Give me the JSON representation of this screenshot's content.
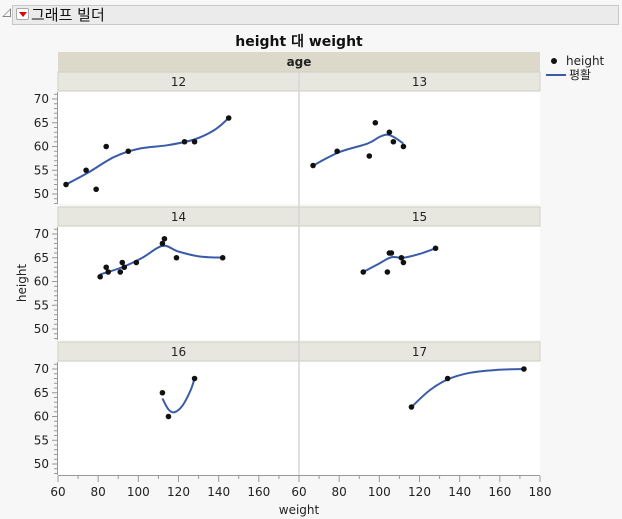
{
  "outline": {
    "title": "그래프 빌더",
    "disclosure_icon": "triangle-collapse-icon",
    "menu_icon": "red-triangle-menu-icon"
  },
  "legend": {
    "items": [
      {
        "label": "height",
        "type": "marker"
      },
      {
        "label": "평활",
        "type": "line"
      }
    ]
  },
  "colors": {
    "smoother": "#3a5ba8",
    "points": "#111111",
    "group_header": "#dcd9cb",
    "facet_header": "#e8e7df",
    "plot_bg": "#ffffff"
  },
  "chart_data": {
    "type": "scatter",
    "title": "height 대 weight",
    "xlabel": "weight",
    "ylabel": "height",
    "group_by_label": "age",
    "xlim": [
      60,
      180
    ],
    "ylim": [
      47,
      71
    ],
    "x_ticks_left": [
      60,
      80,
      100,
      120,
      140,
      160
    ],
    "x_ticks_right": [
      60,
      80,
      100,
      120,
      140,
      160,
      180
    ],
    "y_ticks": [
      50,
      55,
      60,
      65,
      70
    ],
    "grid": false,
    "legend_position": "right",
    "smoother": "spline",
    "panels": [
      {
        "age": "12",
        "points": [
          [
            64,
            52
          ],
          [
            74,
            55
          ],
          [
            79,
            51
          ],
          [
            84,
            60
          ],
          [
            95,
            59
          ],
          [
            123,
            61
          ],
          [
            128,
            61
          ],
          [
            145,
            66
          ]
        ],
        "smooth": [
          [
            64,
            52
          ],
          [
            75,
            54.5
          ],
          [
            88,
            57.8
          ],
          [
            100,
            59.5
          ],
          [
            115,
            60.3
          ],
          [
            128,
            61.5
          ],
          [
            138,
            63.5
          ],
          [
            145,
            66
          ]
        ]
      },
      {
        "age": "13",
        "points": [
          [
            67,
            56
          ],
          [
            79,
            59
          ],
          [
            95,
            58
          ],
          [
            98,
            65
          ],
          [
            105,
            63
          ],
          [
            107,
            61
          ],
          [
            112,
            60
          ]
        ],
        "smooth": [
          [
            67,
            56
          ],
          [
            80,
            58.8
          ],
          [
            94,
            60.6
          ],
          [
            100,
            62
          ],
          [
            104,
            62.5
          ],
          [
            108,
            61.8
          ],
          [
            112,
            60.6
          ]
        ]
      },
      {
        "age": "14",
        "points": [
          [
            81,
            61
          ],
          [
            84,
            63
          ],
          [
            85,
            62
          ],
          [
            91,
            62
          ],
          [
            92,
            64
          ],
          [
            93,
            63
          ],
          [
            99,
            64
          ],
          [
            112,
            68
          ],
          [
            113,
            69
          ],
          [
            119,
            65
          ],
          [
            142,
            65
          ]
        ],
        "smooth": [
          [
            81,
            61.5
          ],
          [
            92,
            63
          ],
          [
            102,
            65
          ],
          [
            112,
            67.5
          ],
          [
            120,
            66.3
          ],
          [
            130,
            65.3
          ],
          [
            142,
            65
          ]
        ]
      },
      {
        "age": "15",
        "points": [
          [
            92,
            62
          ],
          [
            104,
            62
          ],
          [
            105,
            66
          ],
          [
            106,
            66
          ],
          [
            111,
            65
          ],
          [
            112,
            64
          ],
          [
            128,
            67
          ]
        ],
        "smooth": [
          [
            92,
            62
          ],
          [
            100,
            63.8
          ],
          [
            106,
            65.1
          ],
          [
            112,
            65
          ],
          [
            120,
            65.8
          ],
          [
            128,
            67
          ]
        ]
      },
      {
        "age": "16",
        "points": [
          [
            112,
            65
          ],
          [
            115,
            60
          ],
          [
            128,
            68
          ]
        ],
        "smooth": [
          [
            112,
            63.8
          ],
          [
            115,
            61.5
          ],
          [
            118,
            60.9
          ],
          [
            122,
            62.3
          ],
          [
            126,
            65.5
          ],
          [
            128,
            68
          ]
        ]
      },
      {
        "age": "17",
        "points": [
          [
            116,
            62
          ],
          [
            134,
            68
          ],
          [
            172,
            70
          ]
        ],
        "smooth": [
          [
            116,
            62
          ],
          [
            125,
            65.5
          ],
          [
            134,
            67.8
          ],
          [
            145,
            69.2
          ],
          [
            158,
            69.8
          ],
          [
            172,
            70
          ]
        ]
      }
    ]
  }
}
